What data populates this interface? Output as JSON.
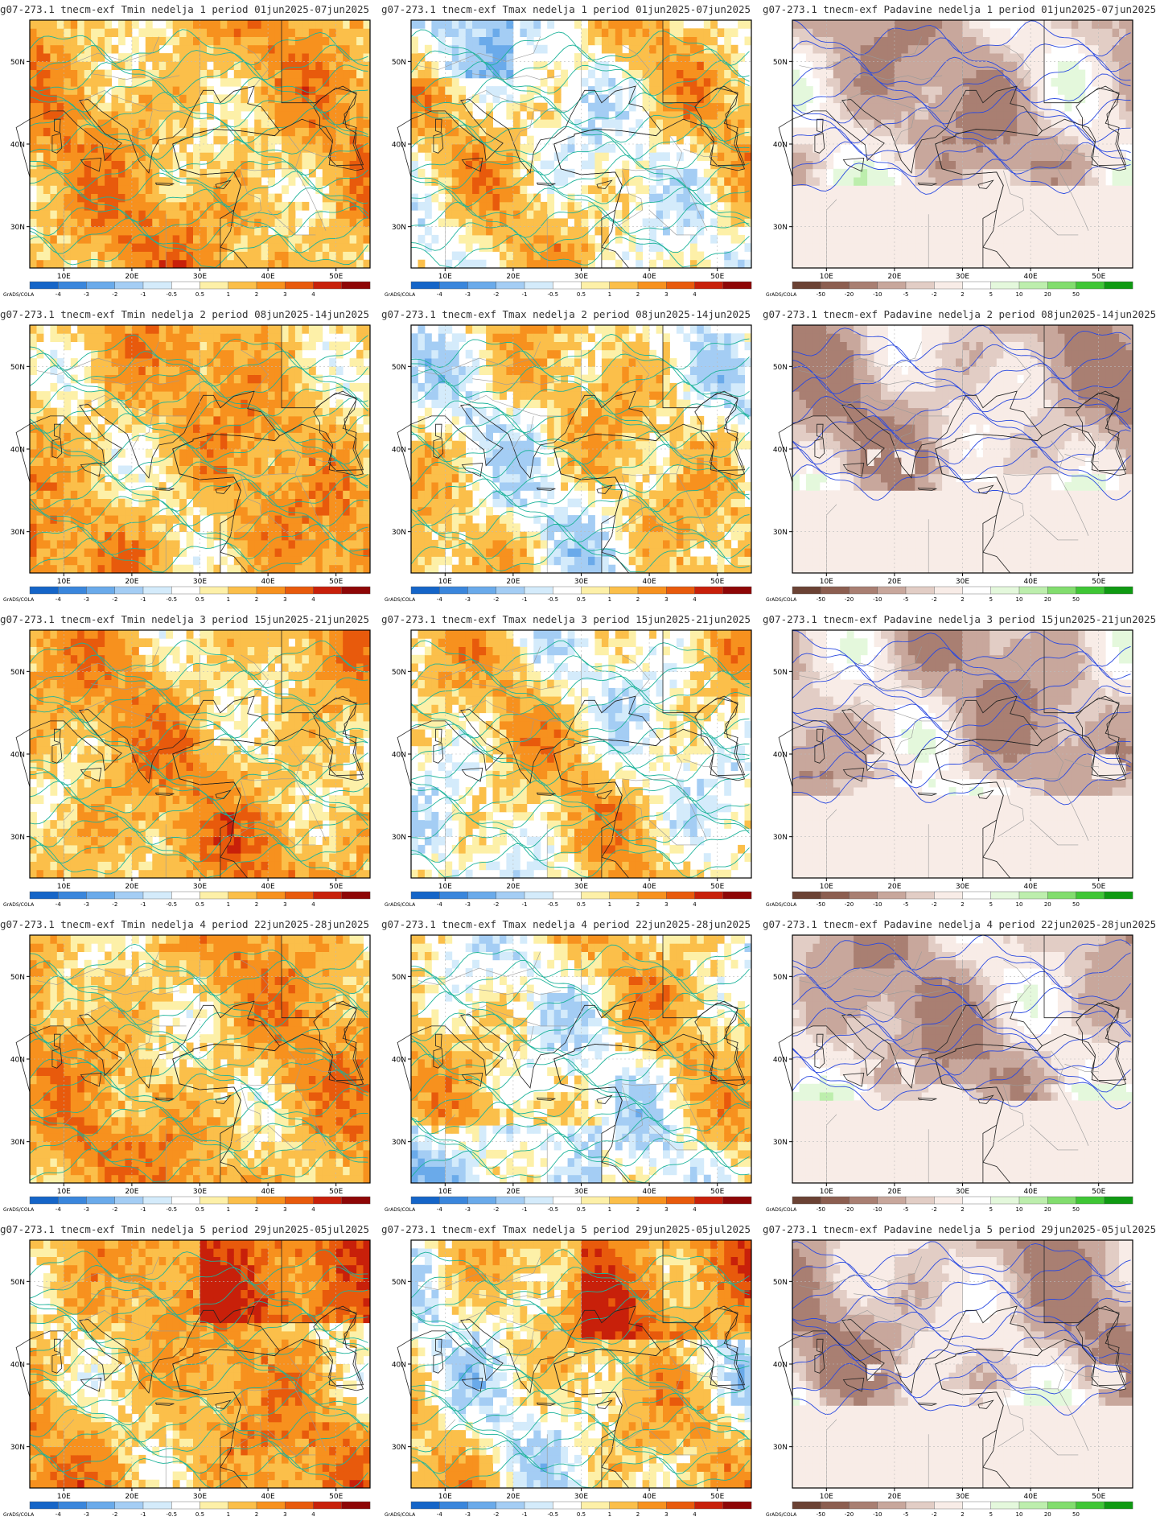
{
  "colorbar_brand": "GrADS/COLA",
  "lat_labels": [
    "50N",
    "40N",
    "30N"
  ],
  "lon_labels": [
    "10E",
    "20E",
    "30E",
    "40E",
    "50E"
  ],
  "temp_scale": {
    "labels": [
      "-4",
      "-3",
      "-2",
      "-1",
      "-0.5",
      "0.5",
      "1",
      "2",
      "3",
      "4"
    ],
    "colors": [
      "#1565c8",
      "#3a86dc",
      "#6aaaea",
      "#a4cdf4",
      "#d4ebfb",
      "#ffffff",
      "#fdf0a8",
      "#fbbf4a",
      "#f7911e",
      "#e85a0c",
      "#c8200a",
      "#8e0606"
    ]
  },
  "precip_scale": {
    "labels": [
      "-50",
      "-20",
      "-10",
      "-5",
      "-2",
      "2",
      "5",
      "10",
      "20",
      "50"
    ],
    "colors": [
      "#6b4234",
      "#8c5e50",
      "#a97f72",
      "#c8a79c",
      "#e2cdc5",
      "#f8ece7",
      "#ffffff",
      "#e4f8dc",
      "#bdeead",
      "#82dd6e",
      "#3fc635",
      "#0f9a12"
    ]
  },
  "contour_colors": {
    "temperature": "#1db39a",
    "precipitation": "#2a49e0",
    "coast": "#222222",
    "border": "#9a9a9a"
  },
  "panels": [
    {
      "title": "g07-273.1 tnecm-exf Tmin nedelja 1 period 01jun2025-07jun2025",
      "kind": "tmin"
    },
    {
      "title": "g07-273.1 tnecm-exf Tmax nedelja 1 period 01jun2025-07jun2025",
      "kind": "tmax"
    },
    {
      "title": "g07-273.1 tnecm-exf Padavine nedelja 1 period 01jun2025-07jun2025",
      "kind": "precip"
    },
    {
      "title": "g07-273.1 tnecm-exf Tmin nedelja 2 period 08jun2025-14jun2025",
      "kind": "tmin"
    },
    {
      "title": "g07-273.1 tnecm-exf Tmax nedelja 2 period 08jun2025-14jun2025",
      "kind": "tmax"
    },
    {
      "title": "g07-273.1 tnecm-exf Padavine nedelja 2 period 08jun2025-14jun2025",
      "kind": "precip"
    },
    {
      "title": "g07-273.1 tnecm-exf Tmin nedelja 3 period 15jun2025-21jun2025",
      "kind": "tmin"
    },
    {
      "title": "g07-273.1 tnecm-exf Tmax nedelja 3 period 15jun2025-21jun2025",
      "kind": "tmax"
    },
    {
      "title": "g07-273.1 tnecm-exf Padavine nedelja 3 period 15jun2025-21jun2025",
      "kind": "precip"
    },
    {
      "title": "g07-273.1 tnecm-exf Tmin nedelja 4 period 22jun2025-28jun2025",
      "kind": "tmin"
    },
    {
      "title": "g07-273.1 tnecm-exf Tmax nedelja 4 period 22jun2025-28jun2025",
      "kind": "tmax"
    },
    {
      "title": "g07-273.1 tnecm-exf Padavine nedelja 4 period 22jun2025-28jun2025",
      "kind": "precip"
    },
    {
      "title": "g07-273.1 tnecm-exf Tmin nedelja 5 period 29jun2025-05jul2025",
      "kind": "tmin"
    },
    {
      "title": "g07-273.1 tnecm-exf Tmax nedelja 5 period 29jun2025-05jul2025",
      "kind": "tmax"
    },
    {
      "title": "g07-273.1 tnecm-exf Padavine nedelja 5 period 29jun2025-05jul2025",
      "kind": "precip"
    }
  ]
}
